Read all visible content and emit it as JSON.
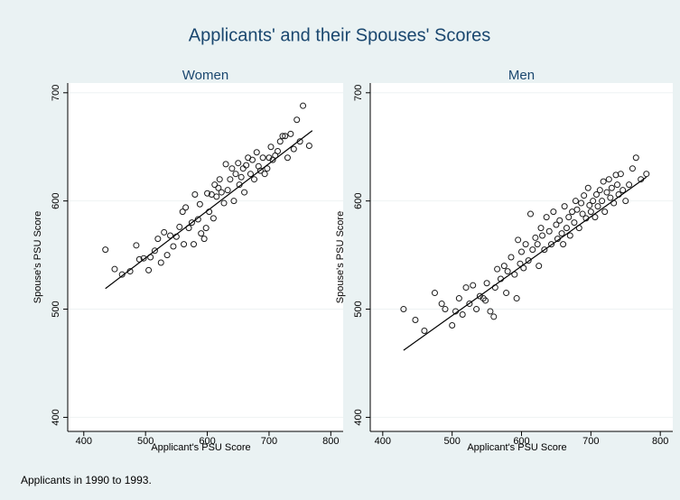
{
  "title": "Applicants' and their Spouses' Scores",
  "note": "Applicants in 1990 to 1993.",
  "chart_data": [
    {
      "type": "scatter",
      "title": "Women",
      "x_label": "Applicant's PSU Score",
      "y_label": "Spouse's PSU Score",
      "xlim": [
        374,
        820
      ],
      "ylim": [
        387,
        709
      ],
      "xticks": [
        400,
        500,
        600,
        700,
        800
      ],
      "yticks": [
        400,
        500,
        600,
        700
      ],
      "grid": true,
      "series": [
        {
          "color": "#1a1a1a",
          "x": [
            435,
            450,
            462,
            475,
            485,
            490,
            497,
            505,
            508,
            515,
            520,
            525,
            530,
            535,
            540,
            545,
            550,
            555,
            560,
            562,
            565,
            570,
            575,
            578,
            580,
            585,
            588,
            590,
            595,
            598,
            600,
            603,
            607,
            610,
            612,
            615,
            618,
            620,
            623,
            627,
            630,
            633,
            637,
            640,
            643,
            646,
            650,
            652,
            655,
            658,
            660,
            663,
            666,
            670,
            673,
            676,
            680,
            683,
            686,
            690,
            693,
            697,
            700,
            703,
            706,
            710,
            714,
            718,
            722,
            726,
            730,
            735,
            740,
            745,
            750,
            755,
            765
          ],
          "values": [
            555,
            537,
            532,
            535,
            559,
            546,
            547,
            536,
            548,
            554,
            565,
            543,
            571,
            550,
            568,
            558,
            567,
            576,
            590,
            560,
            594,
            575,
            580,
            560,
            606,
            583,
            597,
            570,
            565,
            575,
            607,
            590,
            606,
            584,
            615,
            604,
            612,
            620,
            608,
            598,
            634,
            610,
            620,
            630,
            600,
            625,
            635,
            615,
            622,
            630,
            608,
            633,
            640,
            625,
            638,
            620,
            645,
            632,
            628,
            640,
            625,
            630,
            640,
            650,
            638,
            642,
            646,
            655,
            660,
            660,
            640,
            662,
            648,
            675,
            655,
            688,
            651
          ]
        }
      ],
      "fit": {
        "color": "#000000",
        "x": [
          435,
          770
        ],
        "values": [
          519,
          665
        ]
      }
    },
    {
      "type": "scatter",
      "title": "Men",
      "x_label": "Applicant's PSU Score",
      "y_label": "Spouse's PSU Score",
      "xlim": [
        382,
        818
      ],
      "ylim": [
        387,
        709
      ],
      "xticks": [
        400,
        500,
        600,
        700,
        800
      ],
      "yticks": [
        400,
        500,
        600,
        700
      ],
      "grid": true,
      "series": [
        {
          "color": "#1a1a1a",
          "x": [
            430,
            447,
            460,
            475,
            485,
            490,
            500,
            505,
            510,
            515,
            520,
            525,
            530,
            535,
            540,
            545,
            548,
            550,
            555,
            560,
            562,
            565,
            570,
            575,
            578,
            580,
            585,
            590,
            593,
            595,
            598,
            600,
            603,
            606,
            610,
            613,
            616,
            620,
            623,
            625,
            628,
            630,
            633,
            636,
            640,
            643,
            646,
            650,
            652,
            655,
            658,
            660,
            662,
            665,
            668,
            670,
            673,
            676,
            678,
            680,
            683,
            686,
            688,
            690,
            693,
            696,
            698,
            700,
            703,
            706,
            708,
            710,
            713,
            716,
            718,
            720,
            723,
            726,
            728,
            730,
            733,
            736,
            738,
            740,
            743,
            746,
            750,
            755,
            760,
            765,
            772,
            780
          ],
          "values": [
            500,
            490,
            480,
            515,
            505,
            500,
            485,
            498,
            510,
            495,
            520,
            505,
            522,
            500,
            512,
            510,
            508,
            524,
            498,
            493,
            520,
            537,
            528,
            540,
            515,
            535,
            548,
            532,
            510,
            564,
            542,
            553,
            538,
            560,
            545,
            588,
            555,
            566,
            560,
            540,
            575,
            568,
            555,
            585,
            572,
            560,
            590,
            578,
            565,
            582,
            570,
            560,
            595,
            575,
            585,
            568,
            590,
            580,
            600,
            592,
            575,
            598,
            588,
            605,
            584,
            612,
            596,
            590,
            600,
            585,
            606,
            595,
            610,
            600,
            618,
            590,
            608,
            620,
            603,
            612,
            598,
            624,
            615,
            606,
            625,
            610,
            600,
            615,
            630,
            640,
            620,
            625
          ]
        }
      ],
      "fit": {
        "color": "#000000",
        "x": [
          430,
          780
        ],
        "values": [
          462,
          622
        ]
      }
    }
  ]
}
